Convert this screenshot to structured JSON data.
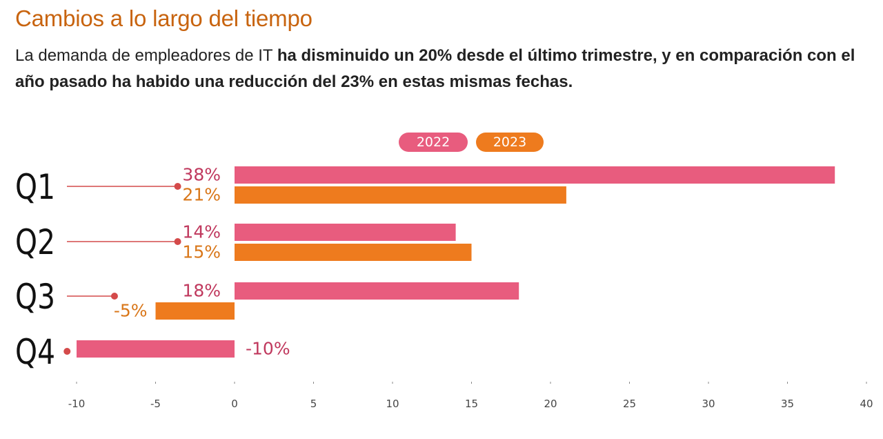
{
  "title": "Cambios a lo largo del tiempo",
  "subtitle": {
    "plain": "La demanda de empleadores de IT ",
    "bold": "ha disminuido un 20% desde el último trimestre, y en comparación con el año pasado ha habido una reducción del 23% en estas mismas fechas."
  },
  "colors": {
    "series_2022": "#e85c7e",
    "series_2023": "#ee7b1e",
    "label_2022": "#c0395e",
    "label_2023": "#d9771a",
    "lollipop": "#d44a4a",
    "axis_text": "#444444",
    "title": "#c8640f"
  },
  "chart_data": {
    "type": "bar",
    "orientation": "horizontal",
    "categories": [
      "Q1",
      "Q2",
      "Q3",
      "Q4"
    ],
    "series": [
      {
        "name": "2022",
        "values": [
          38,
          14,
          18,
          -10
        ],
        "labels": [
          "38%",
          "14%",
          "18%",
          "-10%"
        ]
      },
      {
        "name": "2023",
        "values": [
          21,
          15,
          -5,
          null
        ],
        "labels": [
          "21%",
          "15%",
          "-5%",
          ""
        ]
      }
    ],
    "lollipop_values": [
      -3.6,
      -3.6,
      -7.6,
      -10.6
    ],
    "xlim": [
      -10.5,
      40
    ],
    "xticks": [
      -10,
      -5,
      0,
      5,
      10,
      15,
      20,
      25,
      30,
      35,
      40
    ],
    "xtick_labels": [
      "-10",
      "-5",
      "0",
      "5",
      "10",
      "15",
      "20",
      "25",
      "30",
      "35",
      "40"
    ],
    "legend_position": "top-center",
    "grid": false
  }
}
